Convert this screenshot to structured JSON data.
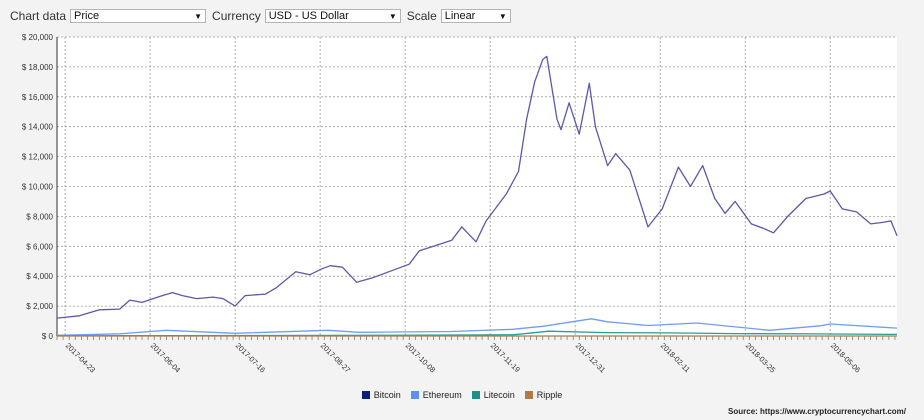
{
  "toolbar": {
    "chart_data_label": "Chart data",
    "chart_data_value": "Price",
    "currency_label": "Currency",
    "currency_value": "USD - US Dollar",
    "scale_label": "Scale",
    "scale_value": "Linear",
    "arrow_icon": "dropdown-arrow-icon"
  },
  "source": "Source: https://www.cryptocurrencychart.com/",
  "chart_data": {
    "type": "line",
    "title": "",
    "xlabel": "",
    "ylabel": "",
    "ylim": [
      0,
      20000
    ],
    "xlim": [
      "2017-04-19",
      "2018-06-08"
    ],
    "grid": true,
    "legend_position": "bottom",
    "y_ticks": [
      "$ 0",
      "$ 2,000",
      "$ 4,000",
      "$ 6,000",
      "$ 8,000",
      "$ 10,000",
      "$ 12,000",
      "$ 14,000",
      "$ 16,000",
      "$ 18,000",
      "$ 20,000"
    ],
    "x_ticks": [
      "2017-04-23",
      "2017-06-04",
      "2017-07-16",
      "2017-08-27",
      "2017-10-08",
      "2017-11-19",
      "2017-12-31",
      "2018-02-11",
      "2018-03-25",
      "2018-05-06"
    ],
    "series": [
      {
        "name": "Bitcoin",
        "color": "#5a5aa8",
        "points": [
          [
            "2017-04-19",
            1200
          ],
          [
            "2017-04-30",
            1350
          ],
          [
            "2017-05-10",
            1750
          ],
          [
            "2017-05-20",
            1800
          ],
          [
            "2017-05-25",
            2400
          ],
          [
            "2017-05-31",
            2250
          ],
          [
            "2017-06-10",
            2700
          ],
          [
            "2017-06-15",
            2900
          ],
          [
            "2017-06-20",
            2700
          ],
          [
            "2017-06-27",
            2500
          ],
          [
            "2017-07-05",
            2600
          ],
          [
            "2017-07-10",
            2500
          ],
          [
            "2017-07-16",
            2000
          ],
          [
            "2017-07-21",
            2700
          ],
          [
            "2017-07-31",
            2800
          ],
          [
            "2017-08-05",
            3200
          ],
          [
            "2017-08-15",
            4300
          ],
          [
            "2017-08-22",
            4100
          ],
          [
            "2017-08-28",
            4500
          ],
          [
            "2017-09-01",
            4700
          ],
          [
            "2017-09-07",
            4600
          ],
          [
            "2017-09-14",
            3600
          ],
          [
            "2017-09-22",
            3900
          ],
          [
            "2017-09-30",
            4300
          ],
          [
            "2017-10-10",
            4800
          ],
          [
            "2017-10-15",
            5700
          ],
          [
            "2017-10-22",
            6000
          ],
          [
            "2017-10-31",
            6400
          ],
          [
            "2017-11-05",
            7300
          ],
          [
            "2017-11-12",
            6300
          ],
          [
            "2017-11-17",
            7700
          ],
          [
            "2017-11-27",
            9500
          ],
          [
            "2017-12-03",
            11000
          ],
          [
            "2017-12-07",
            14500
          ],
          [
            "2017-12-11",
            17000
          ],
          [
            "2017-12-15",
            18500
          ],
          [
            "2017-12-17",
            18700
          ],
          [
            "2017-12-22",
            14500
          ],
          [
            "2017-12-24",
            13800
          ],
          [
            "2017-12-28",
            15600
          ],
          [
            "2018-01-02",
            13500
          ],
          [
            "2018-01-07",
            16900
          ],
          [
            "2018-01-10",
            14000
          ],
          [
            "2018-01-16",
            11400
          ],
          [
            "2018-01-20",
            12200
          ],
          [
            "2018-01-27",
            11100
          ],
          [
            "2018-02-01",
            9000
          ],
          [
            "2018-02-05",
            7300
          ],
          [
            "2018-02-12",
            8500
          ],
          [
            "2018-02-20",
            11300
          ],
          [
            "2018-02-26",
            10000
          ],
          [
            "2018-03-04",
            11400
          ],
          [
            "2018-03-10",
            9200
          ],
          [
            "2018-03-15",
            8200
          ],
          [
            "2018-03-20",
            9000
          ],
          [
            "2018-03-28",
            7500
          ],
          [
            "2018-04-03",
            7200
          ],
          [
            "2018-04-08",
            6900
          ],
          [
            "2018-04-15",
            8000
          ],
          [
            "2018-04-24",
            9200
          ],
          [
            "2018-05-03",
            9500
          ],
          [
            "2018-05-06",
            9700
          ],
          [
            "2018-05-12",
            8500
          ],
          [
            "2018-05-19",
            8300
          ],
          [
            "2018-05-26",
            7500
          ],
          [
            "2018-06-01",
            7600
          ],
          [
            "2018-06-05",
            7700
          ],
          [
            "2018-06-08",
            6700
          ]
        ]
      },
      {
        "name": "Ethereum",
        "color": "#6f9df5",
        "points": [
          [
            "2017-04-19",
            50
          ],
          [
            "2017-05-20",
            150
          ],
          [
            "2017-06-12",
            380
          ],
          [
            "2017-07-16",
            180
          ],
          [
            "2017-08-31",
            380
          ],
          [
            "2017-09-15",
            250
          ],
          [
            "2017-10-31",
            300
          ],
          [
            "2017-11-30",
            450
          ],
          [
            "2017-12-15",
            650
          ],
          [
            "2018-01-08",
            1150
          ],
          [
            "2018-01-16",
            950
          ],
          [
            "2018-02-05",
            700
          ],
          [
            "2018-03-01",
            870
          ],
          [
            "2018-04-06",
            380
          ],
          [
            "2018-05-01",
            680
          ],
          [
            "2018-05-06",
            800
          ],
          [
            "2018-06-08",
            530
          ]
        ]
      },
      {
        "name": "Litecoin",
        "color": "#2a9d8f",
        "points": [
          [
            "2017-04-19",
            10
          ],
          [
            "2017-06-01",
            30
          ],
          [
            "2017-10-01",
            50
          ],
          [
            "2017-12-01",
            90
          ],
          [
            "2017-12-18",
            320
          ],
          [
            "2018-01-15",
            230
          ],
          [
            "2018-02-15",
            210
          ],
          [
            "2018-03-20",
            160
          ],
          [
            "2018-04-30",
            140
          ],
          [
            "2018-06-08",
            110
          ]
        ]
      },
      {
        "name": "Ripple",
        "color": "#b07b46",
        "points": [
          [
            "2017-04-19",
            1
          ],
          [
            "2017-12-01",
            1
          ],
          [
            "2018-01-04",
            3
          ],
          [
            "2018-06-08",
            1
          ]
        ]
      }
    ]
  }
}
